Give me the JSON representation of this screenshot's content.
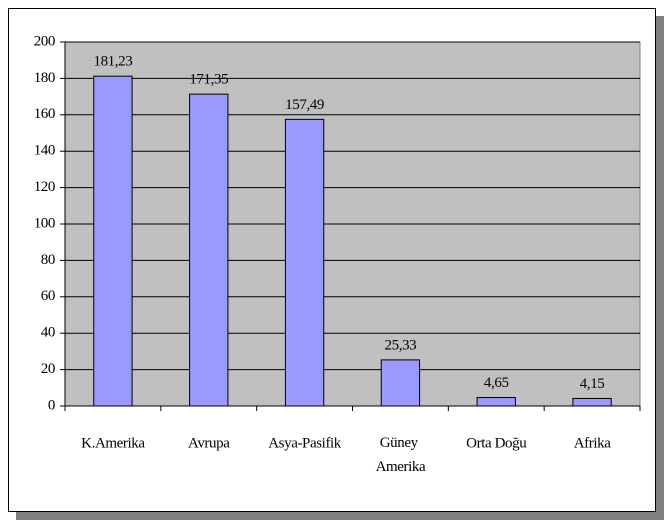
{
  "chart_data": {
    "type": "bar",
    "categories": [
      "K.Amerika",
      "Avrupa",
      "Asya-Pasifik",
      "Güney Amerika",
      "Orta Doğu",
      "Afrika"
    ],
    "values": [
      181.23,
      171.35,
      157.49,
      25.33,
      4.65,
      4.15
    ],
    "value_labels": [
      "181,23",
      "171,35",
      "157,49",
      "25,33",
      "4,65",
      "4,15"
    ],
    "color": "#9999ff",
    "ylim": [
      0,
      200
    ],
    "yticks": [
      0,
      20,
      40,
      60,
      80,
      100,
      120,
      140,
      160,
      180,
      200
    ],
    "grid": true
  }
}
